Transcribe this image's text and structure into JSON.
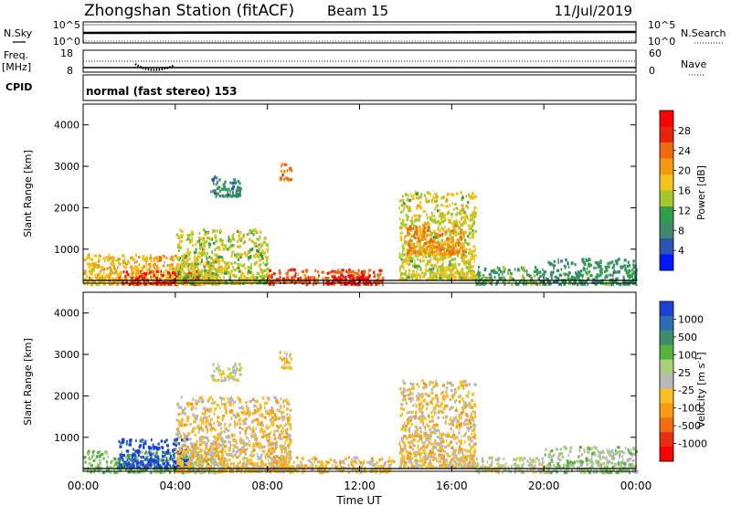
{
  "header": {
    "station": "Zhongshan Station (fitACF)",
    "beam": "Beam 15",
    "date": "11/Jul/2019"
  },
  "top_panels": {
    "nsky": {
      "label": "N.Sky",
      "ticks_left": [
        "10^5",
        "10^0"
      ],
      "ticks_right": [
        "10^5",
        "10^0"
      ],
      "right_label": "N.Search"
    },
    "freq": {
      "label_top": "Freq.",
      "label_bottom": "[MHz]",
      "ticks_left": [
        "18",
        "8"
      ],
      "ticks_right": [
        "60",
        "0"
      ],
      "right_label": "Nave"
    },
    "cpid": {
      "label": "CPID",
      "text": "normal (fast stereo) 153"
    }
  },
  "x_axis": {
    "label": "Time UT",
    "ticks": [
      "00:00",
      "04:00",
      "08:00",
      "12:00",
      "16:00",
      "20:00",
      "00:00"
    ]
  },
  "power_colorbar": {
    "label": "Power [dB]",
    "ticks": [
      "4",
      "8",
      "12",
      "16",
      "20",
      "24",
      "28"
    ],
    "colors": [
      "#0018ff",
      "#2b55b0",
      "#3f8a6f",
      "#2e9e4a",
      "#a6c62e",
      "#f4c21a",
      "#f39a12",
      "#ef6a10",
      "#e8230c",
      "#ff0000"
    ]
  },
  "velocity_colorbar": {
    "label": "Velocity [m s",
    "label_sup": "-1",
    "label_end": "]",
    "ticks": [
      "1000",
      "500",
      "100",
      "25",
      "-25",
      "-100",
      "-500",
      "-1000"
    ],
    "colors": [
      "#1c3fd6",
      "#2c6fb0",
      "#3c8f6a",
      "#54b43a",
      "#a8d07a",
      "#b8b8b8",
      "#f8c020",
      "#f79a14",
      "#f06e10",
      "#e83010",
      "#ff0000"
    ]
  },
  "chart_data": [
    {
      "type": "heatmap",
      "title": "",
      "xlabel": "Time UT",
      "ylabel": "Slant Range [km]",
      "xlim": [
        "00:00",
        "24:00"
      ],
      "ylim": [
        180,
        4500
      ],
      "yticks": [
        1000,
        2000,
        3000,
        4000
      ],
      "value_label": "Power [dB]",
      "value_range": [
        0,
        30
      ],
      "blobs": [
        {
          "t0": 0.0,
          "t1": 6.0,
          "r0": 180,
          "r1": 900,
          "v": 18
        },
        {
          "t0": 1.5,
          "t1": 5.0,
          "r0": 180,
          "r1": 500,
          "v": 26
        },
        {
          "t0": 4.0,
          "t1": 8.0,
          "r0": 200,
          "r1": 1500,
          "v": 14
        },
        {
          "t0": 5.5,
          "t1": 6.8,
          "r0": 2300,
          "r1": 2800,
          "v": 8
        },
        {
          "t0": 8.5,
          "t1": 9.0,
          "r0": 2700,
          "r1": 3100,
          "v": 22
        },
        {
          "t0": 8.0,
          "t1": 13.0,
          "r0": 180,
          "r1": 550,
          "v": 24
        },
        {
          "t0": 10.5,
          "t1": 12.5,
          "r0": 180,
          "r1": 400,
          "v": 29
        },
        {
          "t0": 13.7,
          "t1": 17.0,
          "r0": 300,
          "r1": 2400,
          "v": 15
        },
        {
          "t0": 14.0,
          "t1": 16.5,
          "r0": 900,
          "r1": 1600,
          "v": 20
        },
        {
          "t0": 17.0,
          "t1": 20.0,
          "r0": 180,
          "r1": 600,
          "v": 10
        },
        {
          "t0": 20.0,
          "t1": 24.0,
          "r0": 180,
          "r1": 800,
          "v": 9
        }
      ]
    },
    {
      "type": "heatmap",
      "title": "",
      "xlabel": "Time UT",
      "ylabel": "Slant Range [km]",
      "xlim": [
        "00:00",
        "24:00"
      ],
      "ylim": [
        180,
        4500
      ],
      "yticks": [
        1000,
        2000,
        3000,
        4000
      ],
      "value_label": "Velocity [m s-1]",
      "value_range": [
        -1000,
        1000
      ],
      "blobs": [
        {
          "t0": 0.0,
          "t1": 6.0,
          "r0": 180,
          "r1": 700,
          "v": 300
        },
        {
          "t0": 1.5,
          "t1": 4.5,
          "r0": 300,
          "r1": 1000,
          "v": 900
        },
        {
          "t0": 4.0,
          "t1": 9.0,
          "r0": 200,
          "r1": 2000,
          "v": -150
        },
        {
          "t0": 5.5,
          "t1": 6.8,
          "r0": 2400,
          "r1": 2800,
          "v": 0
        },
        {
          "t0": 8.5,
          "t1": 9.0,
          "r0": 2700,
          "r1": 3100,
          "v": -200
        },
        {
          "t0": 8.0,
          "t1": 13.5,
          "r0": 180,
          "r1": 550,
          "v": -150
        },
        {
          "t0": 13.7,
          "t1": 17.0,
          "r0": 300,
          "r1": 2400,
          "v": -150
        },
        {
          "t0": 17.0,
          "t1": 20.0,
          "r0": 180,
          "r1": 550,
          "v": 60
        },
        {
          "t0": 20.0,
          "t1": 24.0,
          "r0": 180,
          "r1": 800,
          "v": 150
        }
      ]
    }
  ]
}
